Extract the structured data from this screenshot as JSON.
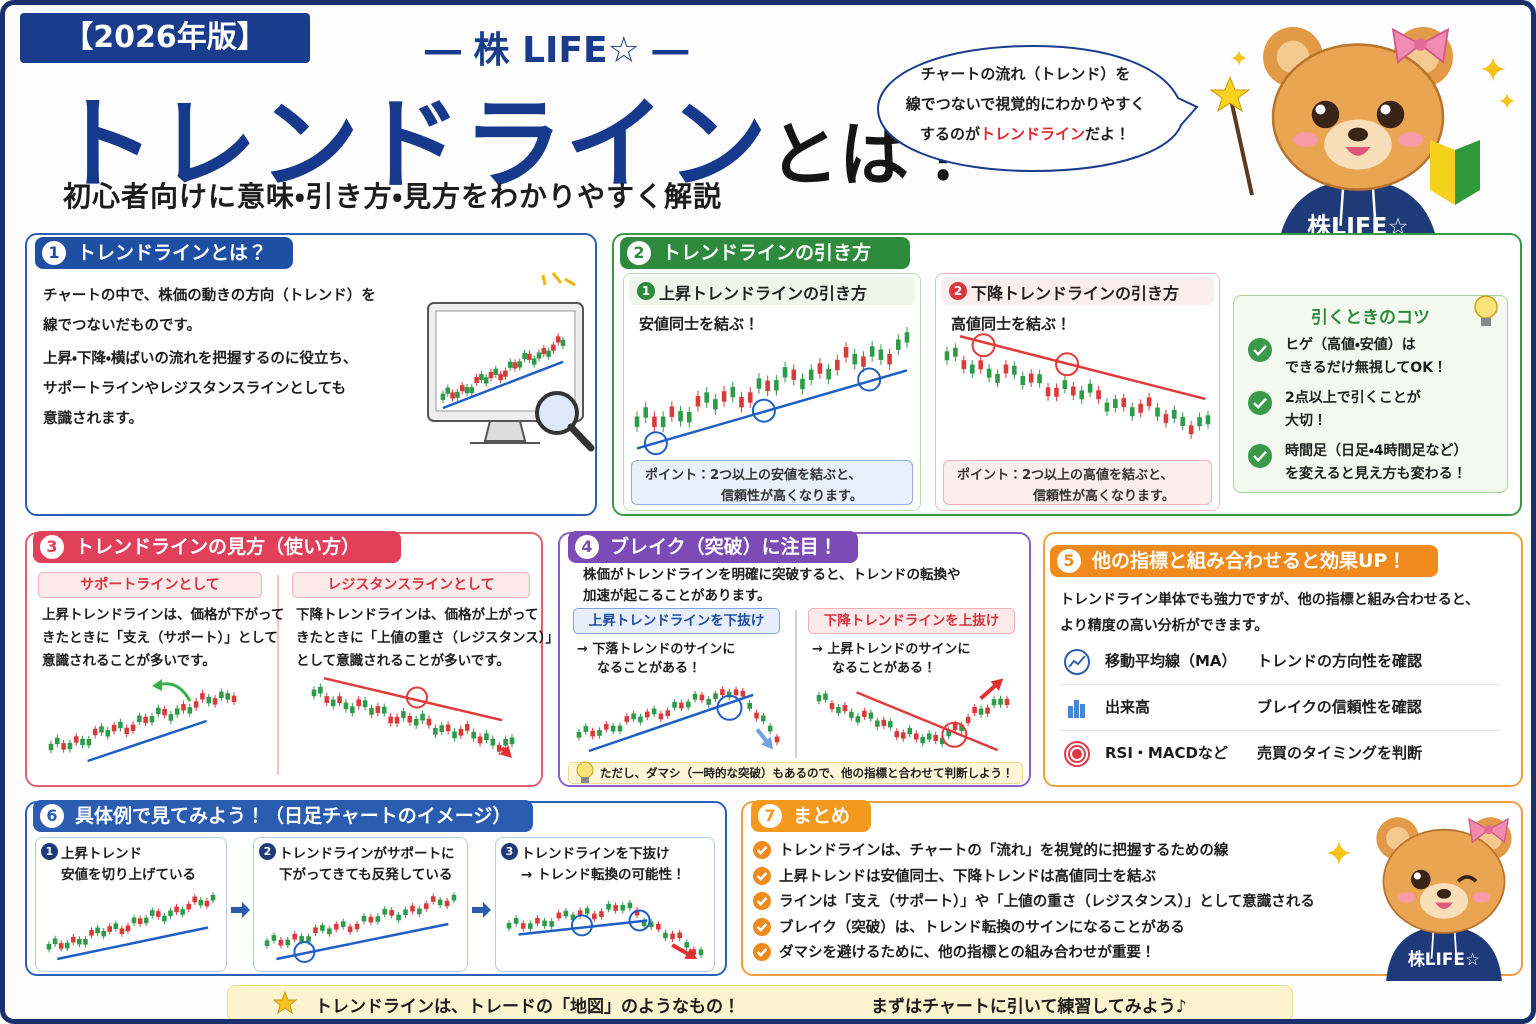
{
  "header": {
    "badge": "【2026年版】",
    "brand": "― 株 LIFE☆ ―",
    "title": "トレンドライン",
    "title_suffix": "とは？",
    "subtitle": "初心者向けに意味・引き方・見方をわかりやすく解説"
  },
  "speech": {
    "line1": "チャートの流れ（トレンド）を",
    "line2": "線でつないで視覚的にわかりやすく",
    "line3_start": "するのが",
    "line3_highlight": "トレンドライン",
    "line3_end": "だよ！"
  },
  "mascot_label": "株LIFE☆",
  "sections": [
    {
      "number": "1",
      "title": "トレンドラインとは？",
      "paragraphs": [
        "チャートの中で、株価の動きの方向（トレンド）を",
        "線でつないだものです。",
        "上昇・下降・横ばいの流れを把握するのに役立ち、",
        "サポートラインやレジスタンスラインとしても",
        "意識されます。"
      ]
    },
    {
      "number": "2",
      "title": "トレンドラインの引き方",
      "cards": [
        {
          "number": "1",
          "title": "上昇トレンドラインの引き方",
          "text": "安値同士を結ぶ！",
          "point": [
            "ポイント：2つ以上の安値を結ぶと、",
            "信頼性が高くなります。"
          ]
        },
        {
          "number": "2",
          "title": "下降トレンドラインの引き方",
          "text": "高値同士を結ぶ！",
          "point": [
            "ポイント：2つ以上の高値を結ぶと、",
            "信頼性が高くなります。"
          ]
        }
      ],
      "tips": {
        "title": "引くときのコツ",
        "items": [
          [
            "ヒゲ（高値・安値）は",
            "できるだけ無視してOK！"
          ],
          [
            "2点以上で引くことが",
            "大切！"
          ],
          [
            "時間足（日足・4時間足など）",
            "を変えると見え方も変わる！"
          ]
        ]
      }
    },
    {
      "number": "3",
      "title": "トレンドラインの見方（使い方）",
      "cards": [
        {
          "title": "サポートラインとして",
          "lines": [
            "上昇トレンドラインは、価格が下がって",
            "きたときに「支え（サポート）」として",
            "意識されることが多いです。"
          ]
        },
        {
          "title": "レジスタンスラインとして",
          "lines": [
            "下降トレンドラインは、価格が上がって",
            "きたときに「上値の重さ（レジスタンス）」",
            "として意識されることが多いです。"
          ]
        }
      ]
    },
    {
      "number": "4",
      "title": "ブレイク（突破）に注目！",
      "lines": [
        "株価がトレンドラインを明確に突破すると、トレンドの転換や",
        "加速が起こることがあります。"
      ],
      "cards": [
        {
          "title": "上昇トレンドラインを下抜け",
          "lines": [
            "→ 下落トレンドのサインに",
            "なることがある！"
          ]
        },
        {
          "title": "下降トレンドラインを上抜け",
          "lines": [
            "→ 上昇トレンドのサインに",
            "なることがある！"
          ]
        }
      ],
      "note": "ただし、ダマシ（一時的な突破）もあるので、他の指標と合わせて判断しよう！"
    },
    {
      "number": "5",
      "title": "他の指標と組み合わせると効果UP！",
      "lines": [
        "トレンドライン単体でも強力ですが、他の指標と組み合わせると、",
        "より精度の高い分析ができます。"
      ],
      "rows": [
        {
          "name": "移動平均線（MA）",
          "desc": "トレンドの方向性を確認"
        },
        {
          "name": "出来高",
          "desc": "ブレイクの信頼性を確認"
        },
        {
          "name": "RSI・MACDなど",
          "desc": "売買のタイミングを判断"
        }
      ]
    },
    {
      "number": "6",
      "title": "具体例で見てみよう！（日足チャートのイメージ）",
      "cards": [
        {
          "number": "1",
          "lines": [
            "上昇トレンド",
            "安値を切り上げている"
          ]
        },
        {
          "number": "2",
          "lines": [
            "トレンドラインがサポートに",
            "下がってきても反発している"
          ]
        },
        {
          "number": "3",
          "lines": [
            "トレンドラインを下抜け",
            "→ トレンド転換の可能性！"
          ]
        }
      ]
    },
    {
      "number": "7",
      "title": "まとめ",
      "items": [
        "トレンドラインは、チャートの「流れ」を視覚的に把握するための線",
        "上昇トレンドは安値同士、下降トレンドは高値同士を結ぶ",
        "ラインは「支え（サポート）」や「上値の重さ（レジスタンス）」として意識される",
        "ブレイク（突破）は、トレンド転換のサインになることがある",
        "ダマシを避けるために、他の指標との組み合わせが重要！"
      ]
    }
  ],
  "footer": {
    "left": "トレンドラインは、トレードの「地図」のようなもの！",
    "right": "まずはチャートに引いて練習してみよう♪"
  }
}
